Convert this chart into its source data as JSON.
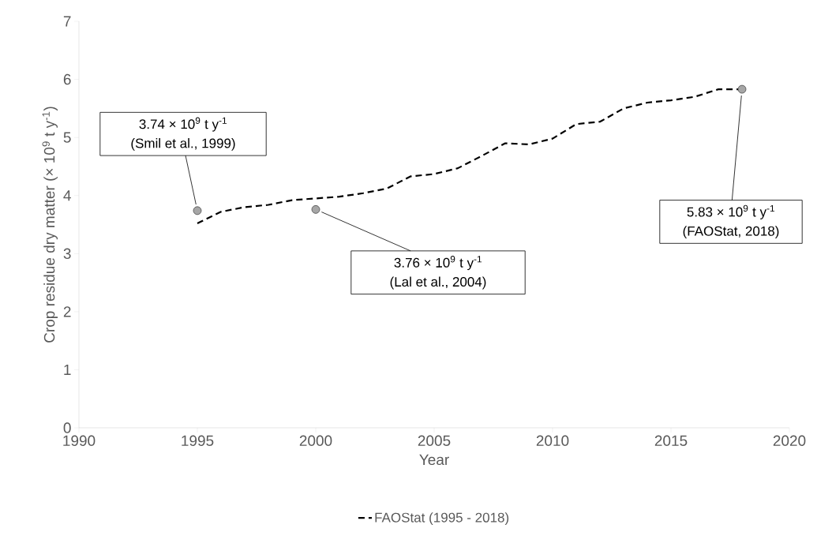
{
  "chart_data": {
    "type": "line",
    "xlabel": "Year",
    "ylabel": "Crop residue dry matter (× 10$^{9}$ t y$^{-1}$)",
    "xlim": [
      1990,
      2020
    ],
    "ylim": [
      0,
      7
    ],
    "xticks": [
      1990,
      1995,
      2000,
      2005,
      2010,
      2015,
      2020
    ],
    "yticks": [
      0,
      1,
      2,
      3,
      4,
      5,
      6,
      7
    ],
    "grid": false,
    "legend": "bottom",
    "series": [
      {
        "name": "FAOStat (1995 - 2018)",
        "color": "#000000",
        "line_style": "dashed",
        "marker": "none",
        "x": [
          1995,
          1996,
          1997,
          1998,
          1999,
          2000,
          2001,
          2002,
          2003,
          2004,
          2005,
          2006,
          2007,
          2008,
          2009,
          2010,
          2011,
          2012,
          2013,
          2014,
          2015,
          2016,
          2017,
          2018
        ],
        "values": [
          3.52,
          3.72,
          3.8,
          3.84,
          3.92,
          3.95,
          3.98,
          4.04,
          4.12,
          4.33,
          4.37,
          4.47,
          4.68,
          4.9,
          4.88,
          4.98,
          5.23,
          5.27,
          5.5,
          5.6,
          5.64,
          5.7,
          5.83,
          5.83
        ]
      },
      {
        "type": "scatter",
        "color": "#a6a6a6",
        "marker": "circle",
        "x": [
          1995,
          2000,
          2018
        ],
        "values": [
          3.74,
          3.76,
          5.83
        ]
      }
    ],
    "annotations": [
      "3.74 × 10$^{9}$ t y$^{-1}$",
      {
        "text": "(Smil et al., 1999)",
        "x": 1995,
        "y": 3.74
      },
      {
        "text": "3.76 × 10$^{9}$ t y$^{-1}$",
        "x": 2000,
        "y": 3.76
      },
      "(Lal et al., 2004)",
      {
        "text": "5.83 × 10$^{9}$ t y$^{-1}$",
        "x": 2018,
        "y": 5.83
      },
      "(FAOStat, 2018)"
    ]
  }
}
